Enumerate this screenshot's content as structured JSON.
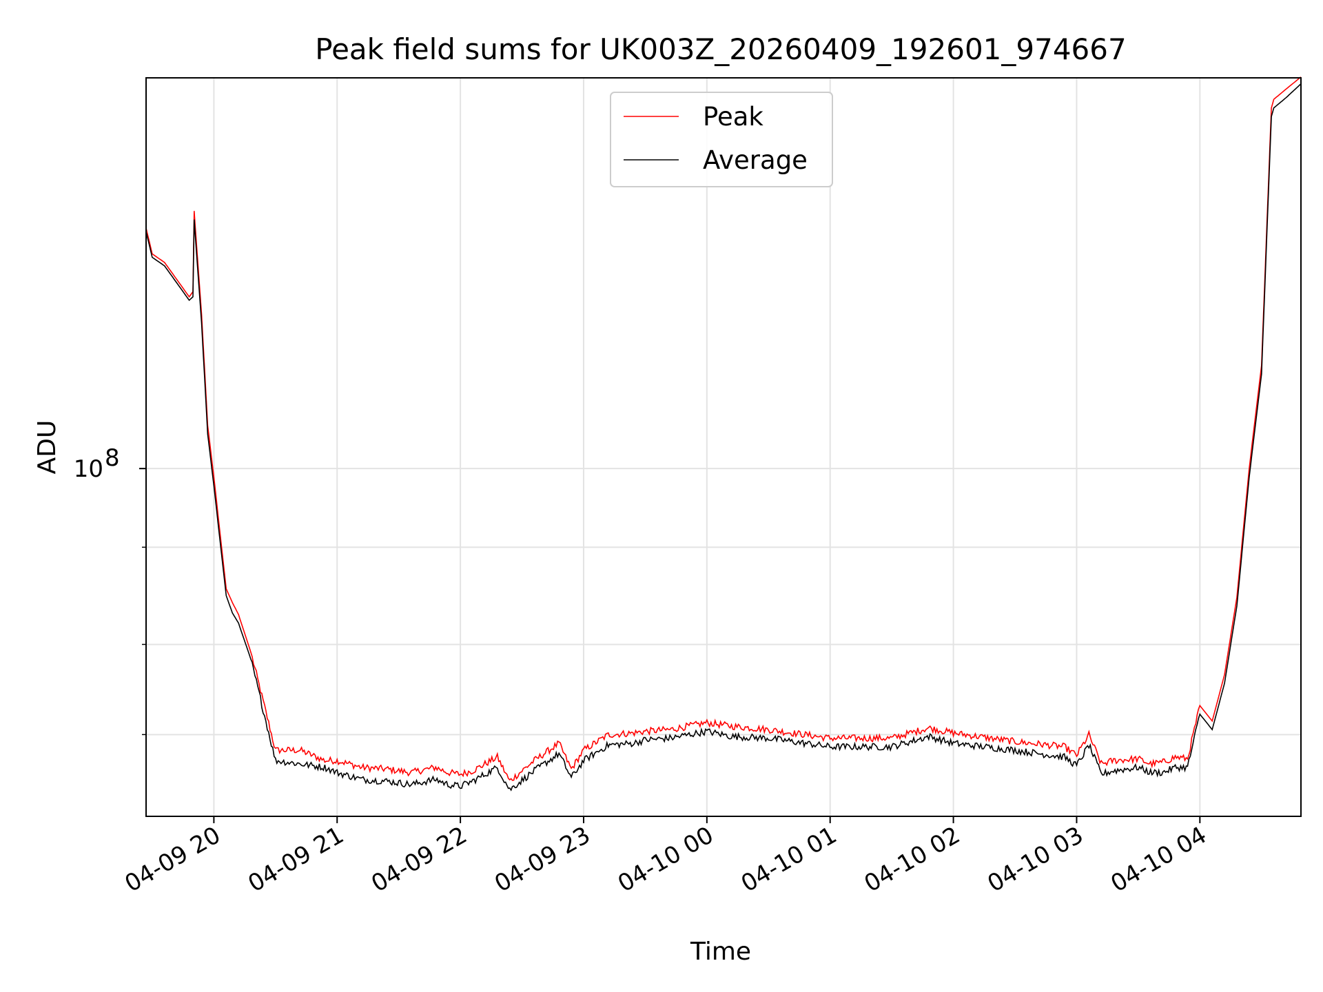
{
  "chart_data": {
    "type": "line",
    "title": "Peak field sums for UK003Z_20260409_192601_974667",
    "xlabel": "Time",
    "ylabel": "ADU",
    "y_scale": "log",
    "grid": true,
    "legend_position": "upper-center",
    "xlim_hours": [
      19.45,
      28.82
    ],
    "ylim_log10": [
      7.7975,
      8.2275
    ],
    "x_ticks": [
      {
        "hour": 20,
        "label": "04-09 20"
      },
      {
        "hour": 21,
        "label": "04-09 21"
      },
      {
        "hour": 22,
        "label": "04-09 22"
      },
      {
        "hour": 23,
        "label": "04-09 23"
      },
      {
        "hour": 24,
        "label": "04-10 00"
      },
      {
        "hour": 25,
        "label": "04-10 01"
      },
      {
        "hour": 26,
        "label": "04-10 02"
      },
      {
        "hour": 27,
        "label": "04-10 03"
      },
      {
        "hour": 28,
        "label": "04-10 04"
      }
    ],
    "y_major_ticks": [
      {
        "value": 100000000,
        "base": "10",
        "exponent": "8"
      }
    ],
    "y_minor_ticks_log10": [
      7.8451,
      7.8976,
      7.9542
    ],
    "x_hours": [
      19.45,
      19.5,
      19.6,
      19.7,
      19.8,
      19.83,
      19.84,
      19.86,
      19.9,
      19.95,
      20.0,
      20.1,
      20.15,
      20.2,
      20.3,
      20.5,
      20.7,
      20.9,
      21.0,
      21.2,
      21.4,
      21.6,
      21.8,
      21.9,
      22.0,
      22.1,
      22.3,
      22.4,
      22.6,
      22.8,
      22.9,
      23.0,
      23.2,
      23.4,
      23.5,
      23.7,
      24.0,
      24.2,
      24.5,
      25.0,
      25.5,
      25.8,
      26.0,
      26.5,
      26.9,
      27.0,
      27.1,
      27.2,
      27.3,
      27.5,
      27.6,
      27.7,
      27.8,
      27.9,
      28.0,
      28.1,
      28.2,
      28.3,
      28.4,
      28.5,
      28.58,
      28.6,
      28.7,
      28.82
    ],
    "series": [
      {
        "name": "Peak",
        "color": "#ff0000",
        "log10_values": [
          8.14,
          8.125,
          8.12,
          8.11,
          8.1,
          8.103,
          8.15,
          8.13,
          8.09,
          8.025,
          7.995,
          7.93,
          7.922,
          7.915,
          7.893,
          7.836,
          7.836,
          7.83,
          7.83,
          7.826,
          7.825,
          7.823,
          7.826,
          7.823,
          7.822,
          7.824,
          7.832,
          7.818,
          7.83,
          7.84,
          7.825,
          7.836,
          7.845,
          7.846,
          7.847,
          7.848,
          7.852,
          7.85,
          7.848,
          7.843,
          7.843,
          7.849,
          7.846,
          7.841,
          7.838,
          7.833,
          7.845,
          7.828,
          7.83,
          7.831,
          7.828,
          7.829,
          7.832,
          7.831,
          7.862,
          7.853,
          7.88,
          7.925,
          8.0,
          8.06,
          8.21,
          8.215,
          8.221,
          8.228
        ]
      },
      {
        "name": "Average",
        "color": "#000000",
        "log10_values": [
          8.138,
          8.123,
          8.118,
          8.108,
          8.098,
          8.1,
          8.145,
          8.125,
          8.085,
          8.02,
          7.99,
          7.926,
          7.916,
          7.91,
          7.889,
          7.83,
          7.828,
          7.826,
          7.823,
          7.819,
          7.818,
          7.816,
          7.819,
          7.816,
          7.815,
          7.818,
          7.826,
          7.813,
          7.824,
          7.834,
          7.82,
          7.83,
          7.839,
          7.84,
          7.842,
          7.843,
          7.847,
          7.844,
          7.843,
          7.838,
          7.838,
          7.844,
          7.84,
          7.836,
          7.832,
          7.827,
          7.839,
          7.822,
          7.824,
          7.826,
          7.823,
          7.823,
          7.826,
          7.826,
          7.857,
          7.848,
          7.875,
          7.92,
          7.995,
          8.055,
          8.205,
          8.21,
          8.216,
          8.224
        ]
      }
    ]
  }
}
